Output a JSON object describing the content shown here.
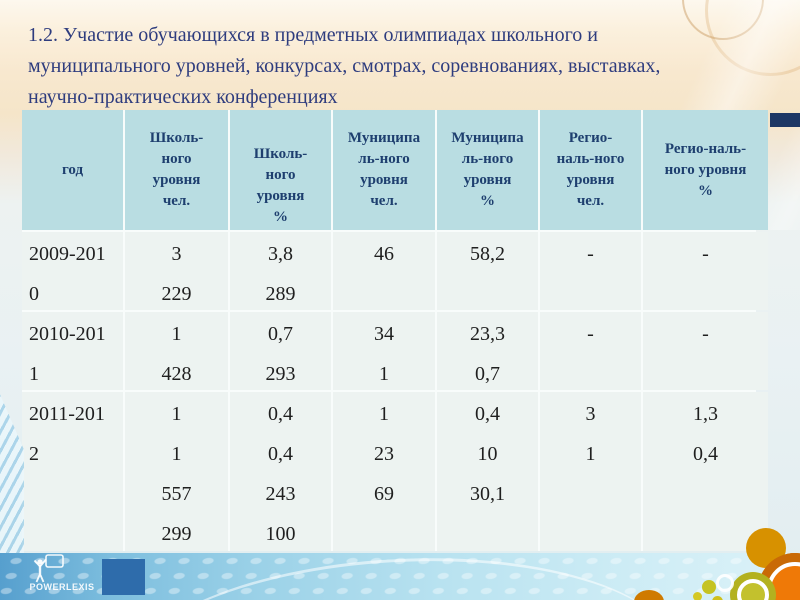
{
  "slide": {
    "title_lines": [
      "1.2. Участие обучающихся в предметных олимпиадах школьного и",
      "муниципального уровней, конкурсах, смотрах, соревнованиях, выставках,",
      "научно-практических конференциях"
    ]
  },
  "table": {
    "columns": [
      {
        "id": "year",
        "lines": [
          "год"
        ]
      },
      {
        "id": "school-people",
        "lines": [
          "Школь-",
          "ного",
          "уровня",
          "чел."
        ]
      },
      {
        "id": "school-percent",
        "lines": [
          "Школь-",
          "ного",
          "уровня",
          "%"
        ]
      },
      {
        "id": "municipal-people",
        "lines": [
          "Муниципа",
          "ль-ного",
          "уровня",
          "чел."
        ]
      },
      {
        "id": "municipal-percent",
        "lines": [
          "Муниципа",
          "ль-ного",
          "уровня",
          "%"
        ]
      },
      {
        "id": "regional-people",
        "lines": [
          "Регио-",
          "наль-ного",
          "уровня",
          "чел."
        ]
      },
      {
        "id": "regional-percent",
        "lines": [
          "Регио-наль-",
          "ного уровня",
          "%"
        ]
      }
    ],
    "rows": [
      {
        "cells": [
          [
            "2009-201",
            "0"
          ],
          [
            "3",
            "229"
          ],
          [
            "3,8",
            "289"
          ],
          [
            "46"
          ],
          [
            "58,2"
          ],
          [
            "-"
          ],
          [
            "-"
          ]
        ]
      },
      {
        "cells": [
          [
            "2010-201",
            "1"
          ],
          [
            "1",
            "428"
          ],
          [
            "0,7",
            "293"
          ],
          [
            "34",
            "1"
          ],
          [
            "23,3",
            "0,7"
          ],
          [
            "-"
          ],
          [
            "-"
          ]
        ]
      },
      {
        "cells": [
          [
            "2011-201",
            "2"
          ],
          [
            "1",
            "1",
            "557",
            "299"
          ],
          [
            "0,4",
            "0,4",
            "243",
            "100"
          ],
          [
            "1",
            "23",
            "69"
          ],
          [
            "0,4",
            "10",
            "30,1"
          ],
          [
            "3",
            "1"
          ],
          [
            "1,3",
            "0,4"
          ]
        ]
      }
    ]
  },
  "footer": {
    "logo_text": "POWERLEXIS"
  },
  "colors": {
    "title_text": "#2e3c7e",
    "header_text": "#1e3f6f",
    "header_bg": "#b9dde2",
    "body_bg": "#edf3f1",
    "navy_bar": "#1d3765",
    "blue_square": "#2e6cab"
  }
}
